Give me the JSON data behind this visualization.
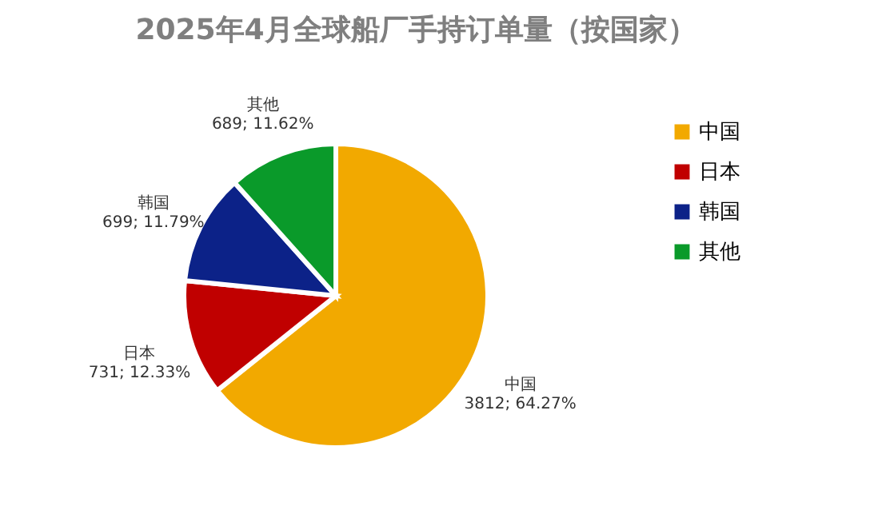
{
  "chart_data": {
    "type": "pie",
    "title": "2025年4月全球船厂手持订单量（按国家）",
    "categories": [
      "中国",
      "日本",
      "韩国",
      "其他"
    ],
    "values": [
      3812,
      731,
      699,
      689
    ],
    "value_labels": [
      "3812; 64.27%",
      "731; 12.33%",
      "699; 11.79%",
      "689; 11.62%"
    ],
    "colors": [
      "#f2a900",
      "#c00000",
      "#0c2288",
      "#0a9a2a"
    ],
    "legend": "right"
  }
}
